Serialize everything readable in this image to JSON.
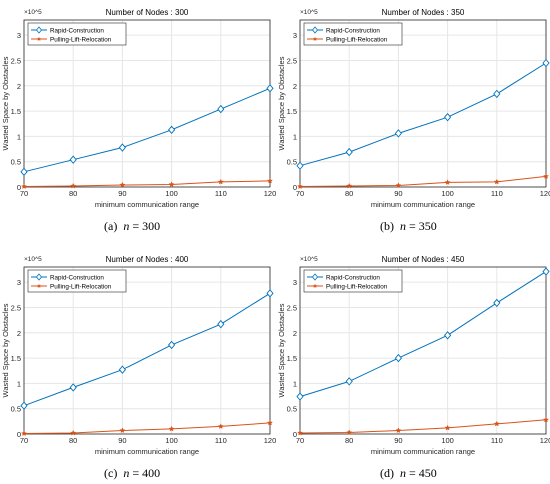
{
  "colors": {
    "rapid": "#0072BD",
    "pulling": "#D95319",
    "grid": "#e6e6e6",
    "axis": "#262626"
  },
  "chart_data": [
    {
      "type": "line",
      "title": "Number of Nodes : 300",
      "xlabel": "minimum communication range",
      "ylabel": "Wasted Space by Obstacles",
      "exponent": "×10^5",
      "x": [
        70,
        80,
        90,
        100,
        110,
        120
      ],
      "xlim": [
        70,
        120
      ],
      "ylim": [
        0,
        3.3
      ],
      "xticks": [
        "70",
        "80",
        "90",
        "100",
        "110",
        "120"
      ],
      "yticks": [
        "0",
        "0.5",
        "1",
        "1.5",
        "2",
        "2.5",
        "3"
      ],
      "grid": true,
      "legend": "top-left",
      "series": [
        {
          "name": "Rapid-Construction",
          "marker": "diamond",
          "values": [
            0.3,
            0.54,
            0.78,
            1.13,
            1.54,
            1.95
          ]
        },
        {
          "name": "Pulling-Lift-Relocation",
          "marker": "star",
          "values": [
            0.01,
            0.02,
            0.04,
            0.05,
            0.1,
            0.12
          ]
        }
      ],
      "caption": {
        "label": "(a)",
        "n": "n",
        "eq": " = 300"
      }
    },
    {
      "type": "line",
      "title": "Number of Nodes : 350",
      "xlabel": "minimum communication range",
      "ylabel": "Wasted Space by Obstacles",
      "exponent": "×10^5",
      "x": [
        70,
        80,
        90,
        100,
        110,
        120
      ],
      "xlim": [
        70,
        120
      ],
      "ylim": [
        0,
        3.3
      ],
      "xticks": [
        "70",
        "80",
        "90",
        "100",
        "110",
        "120"
      ],
      "yticks": [
        "0",
        "0.5",
        "1",
        "1.5",
        "2",
        "2.5",
        "3"
      ],
      "grid": true,
      "legend": "top-left",
      "series": [
        {
          "name": "Rapid-Construction",
          "marker": "diamond",
          "values": [
            0.42,
            0.69,
            1.06,
            1.38,
            1.84,
            2.45
          ]
        },
        {
          "name": "Pulling-Lift-Relocation",
          "marker": "star",
          "values": [
            0.01,
            0.02,
            0.03,
            0.09,
            0.1,
            0.21
          ]
        }
      ],
      "caption": {
        "label": "(b)",
        "n": "n",
        "eq": " = 350"
      }
    },
    {
      "type": "line",
      "title": "Number of Nodes : 400",
      "xlabel": "minimum communication range",
      "ylabel": "Wasted Space by Obstacles",
      "exponent": "×10^5",
      "x": [
        70,
        80,
        90,
        100,
        110,
        120
      ],
      "xlim": [
        70,
        120
      ],
      "ylim": [
        0,
        3.3
      ],
      "xticks": [
        "70",
        "80",
        "90",
        "100",
        "110",
        "120"
      ],
      "yticks": [
        "0",
        "0.5",
        "1",
        "1.5",
        "2",
        "2.5",
        "3"
      ],
      "grid": true,
      "legend": "top-left",
      "series": [
        {
          "name": "Rapid-Construction",
          "marker": "diamond",
          "values": [
            0.56,
            0.92,
            1.27,
            1.76,
            2.17,
            2.78
          ]
        },
        {
          "name": "Pulling-Lift-Relocation",
          "marker": "star",
          "values": [
            0.01,
            0.02,
            0.07,
            0.1,
            0.15,
            0.22
          ]
        }
      ],
      "caption": {
        "label": "(c)",
        "n": "n",
        "eq": " = 400"
      }
    },
    {
      "type": "line",
      "title": "Number of Nodes : 450",
      "xlabel": "minimum communication range",
      "ylabel": "Wasted Space by Obstacles",
      "exponent": "×10^5",
      "x": [
        70,
        80,
        90,
        100,
        110,
        120
      ],
      "xlim": [
        70,
        120
      ],
      "ylim": [
        0,
        3.3
      ],
      "xticks": [
        "70",
        "80",
        "90",
        "100",
        "110",
        "120"
      ],
      "yticks": [
        "0",
        "0.5",
        "1",
        "1.5",
        "2",
        "2.5",
        "3"
      ],
      "grid": true,
      "legend": "top-left",
      "series": [
        {
          "name": "Rapid-Construction",
          "marker": "diamond",
          "values": [
            0.74,
            1.04,
            1.5,
            1.95,
            2.59,
            3.21
          ]
        },
        {
          "name": "Pulling-Lift-Relocation",
          "marker": "star",
          "values": [
            0.02,
            0.03,
            0.07,
            0.12,
            0.2,
            0.28
          ]
        }
      ],
      "caption": {
        "label": "(d)",
        "n": "n",
        "eq": " = 450"
      }
    }
  ]
}
